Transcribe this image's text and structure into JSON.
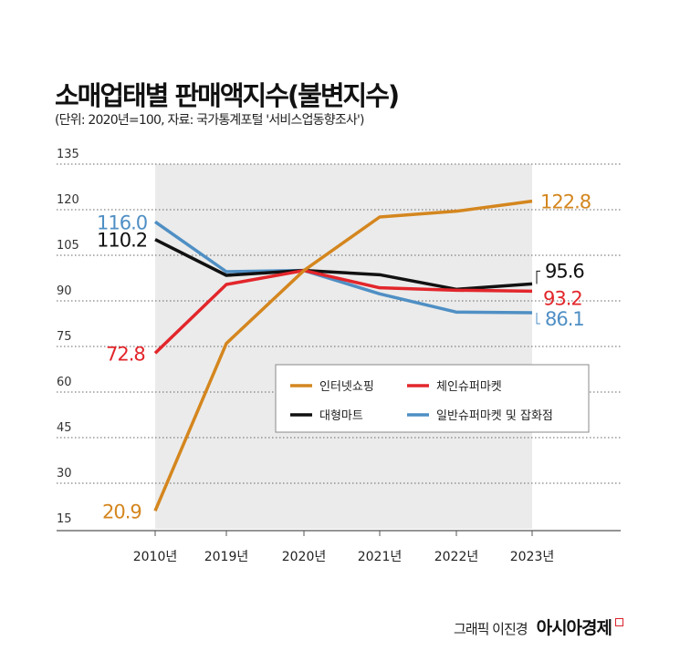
{
  "title": "소매업태별 판매액지수(불변지수)",
  "subtitle": "(단위: 2020년=100, 자료: 국가통계포털 '서비스업동향조사')",
  "credit": "그래픽 이진경",
  "brand": "아시아경제",
  "chart_data": {
    "type": "line",
    "categories": [
      "2010년",
      "2019년",
      "2020년",
      "2021년",
      "2022년",
      "2023년"
    ],
    "ylim": [
      15,
      135
    ],
    "yticks": [
      15,
      30,
      45,
      60,
      75,
      90,
      105,
      120,
      135
    ],
    "grid": true,
    "legend_position": "center-right",
    "series": [
      {
        "name": "인터넷쇼핑",
        "color": "#d4861e",
        "values": [
          20.9,
          76,
          100,
          117.6,
          119.5,
          122.8
        ],
        "labels": [
          "20.9",
          "",
          "",
          "",
          "",
          "122.8"
        ]
      },
      {
        "name": "체인슈퍼마켓",
        "color": "#e2262b",
        "values": [
          72.8,
          95.4,
          100,
          94.3,
          93.5,
          93.2
        ],
        "labels": [
          "72.8",
          "",
          "",
          "",
          "",
          "93.2"
        ]
      },
      {
        "name": "대형마트",
        "color": "#111111",
        "values": [
          110.2,
          98.4,
          100,
          98.6,
          93.8,
          95.6
        ],
        "labels": [
          "110.2",
          "",
          "",
          "",
          "",
          "95.6"
        ]
      },
      {
        "name": "일반슈퍼마켓 및 잡화점",
        "color": "#4f8fc4",
        "values": [
          116.0,
          99.6,
          100,
          92.3,
          86.3,
          86.1
        ],
        "labels": [
          "116.0",
          "",
          "",
          "",
          "",
          "86.1"
        ]
      }
    ]
  }
}
